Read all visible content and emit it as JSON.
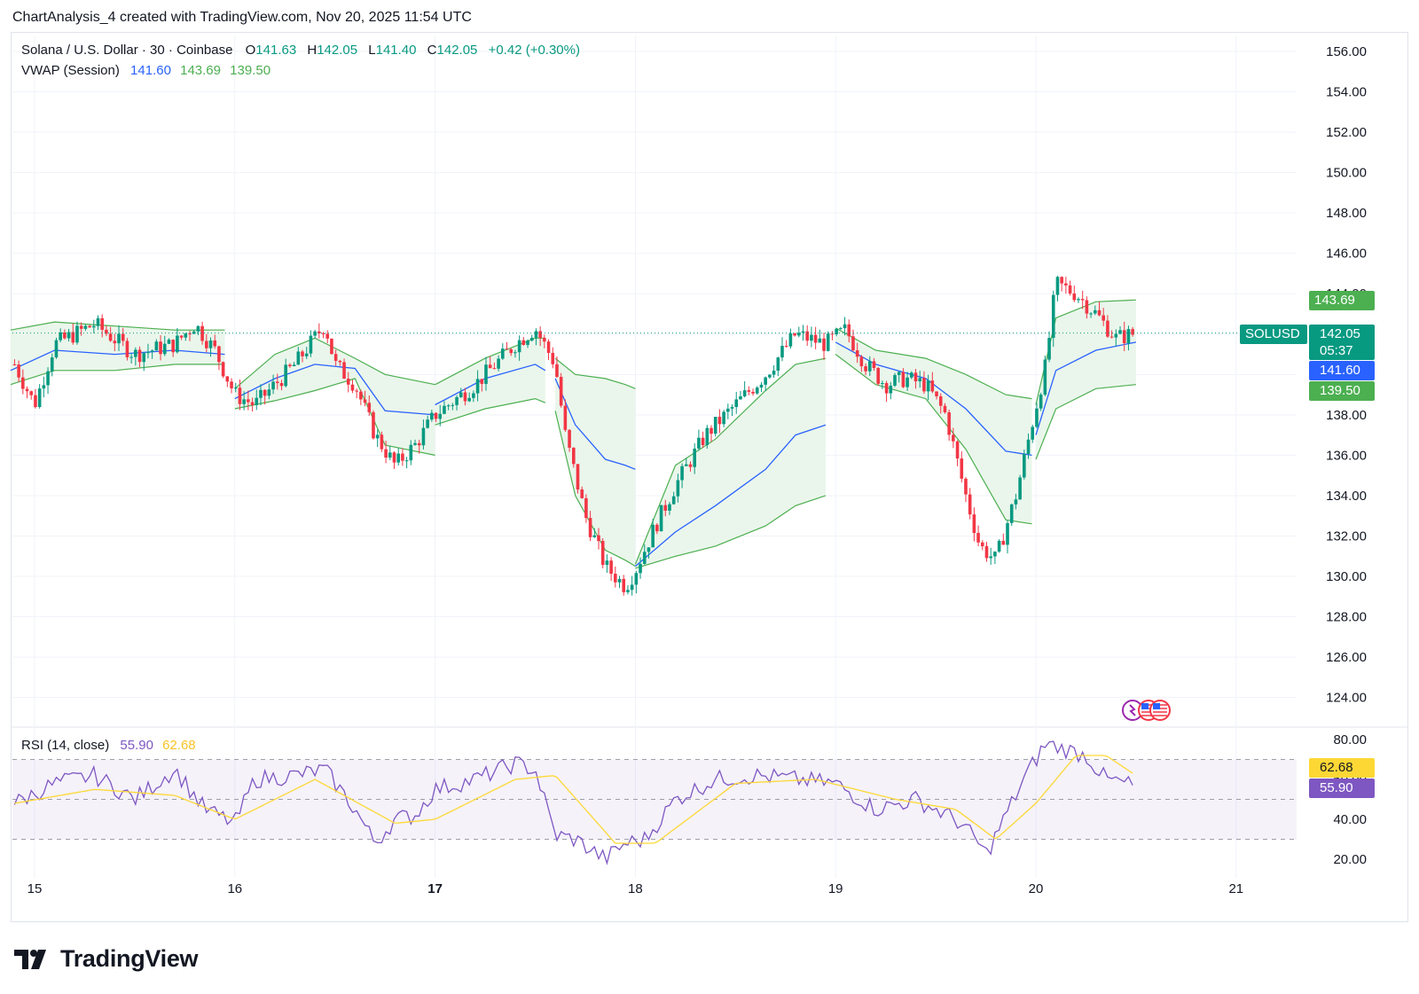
{
  "header": {
    "created_by": "ChartAnalysis_4 created with TradingView.com, Nov 20, 2025 11:54 UTC"
  },
  "legend": {
    "symbol": "Solana / U.S. Dollar · 30 · Coinbase",
    "open_label": "O",
    "open": "141.63",
    "high_label": "H",
    "high": "142.05",
    "low_label": "L",
    "low": "141.40",
    "close_label": "C",
    "close": "142.05",
    "change": "+0.42 (+0.30%)",
    "vwap_name": "VWAP (Session)",
    "vwap_value": "141.60",
    "vwap_upper": "143.69",
    "vwap_lower": "139.50",
    "rsi_name": "RSI (14, close)",
    "rsi_value": "55.90",
    "rsi_ma": "62.68"
  },
  "price_tags": {
    "vwap_upper": "143.69",
    "symbol": "SOLUSD",
    "last": "142.05",
    "countdown": "05:37",
    "vwap": "141.60",
    "vwap_lower": "139.50",
    "rsi_ma": "62.68",
    "rsi": "55.90"
  },
  "colors": {
    "up": "#089981",
    "down": "#f23645",
    "vwap": "#2962ff",
    "band": "#4caf50",
    "band_fill": "#e8f5e9",
    "rsi": "#7e57c2",
    "rsi_ma": "#fdd835",
    "grid": "#f0f3fa",
    "text": "#131722"
  },
  "footer": {
    "brand": "TradingView"
  },
  "chart_data": [
    {
      "type": "candlestick",
      "title": "Solana / U.S. Dollar · 30 · Coinbase",
      "x_ticks": [
        "15",
        "16",
        "17",
        "18",
        "19",
        "20",
        "21"
      ],
      "y_ticks": [
        "124.00",
        "126.00",
        "128.00",
        "130.00",
        "132.00",
        "134.00",
        "136.00",
        "138.00",
        "140.00",
        "142.00",
        "144.00",
        "146.00",
        "148.00",
        "150.00",
        "152.00",
        "154.00",
        "156.00"
      ],
      "ylim": [
        122.0,
        157.0
      ],
      "last_price": 142.05,
      "grid": true,
      "price_path_days": [
        14.9,
        15.0,
        15.1,
        15.3,
        15.5,
        15.7,
        15.8,
        15.9,
        16.0,
        16.1,
        16.3,
        16.45,
        16.5,
        16.6,
        16.7,
        16.8,
        16.9,
        17.0,
        17.2,
        17.4,
        17.5,
        17.6,
        17.65,
        17.75,
        17.85,
        17.95,
        18.0,
        18.1,
        18.2,
        18.35,
        18.5,
        18.65,
        18.8,
        18.95,
        19.05,
        19.15,
        19.25,
        19.35,
        19.45,
        19.55,
        19.65,
        19.72,
        19.8,
        19.9,
        19.98,
        20.05,
        20.1,
        20.2,
        20.3,
        20.4,
        20.5
      ],
      "price_path_values": [
        140.5,
        138.5,
        141.5,
        142.5,
        141.0,
        141.5,
        142.5,
        141.2,
        139.0,
        138.5,
        140.5,
        142.5,
        140.5,
        139.5,
        137.0,
        135.5,
        136.5,
        138.0,
        139.5,
        141.5,
        142.3,
        140.5,
        137.0,
        133.0,
        130.5,
        129.5,
        130.3,
        132.5,
        134.5,
        137.0,
        138.5,
        140.0,
        142.0,
        141.5,
        142.2,
        140.5,
        139.5,
        139.8,
        139.5,
        138.0,
        134.0,
        131.5,
        130.8,
        134.0,
        137.5,
        140.5,
        144.5,
        144.0,
        143.0,
        141.8,
        142.05
      ],
      "vwap": {
        "name": "VWAP (Session)",
        "current": 141.6,
        "upper": 143.69,
        "lower": 139.5
      },
      "vwap_segments": [
        {
          "days": [
            14.88,
            15.1,
            15.4,
            15.7,
            15.95
          ],
          "mid": [
            140.2,
            141.2,
            141.0,
            141.2,
            141.0
          ],
          "upper": [
            142.2,
            142.6,
            142.4,
            142.2,
            142.2
          ],
          "lower": [
            139.5,
            140.2,
            140.2,
            140.5,
            140.5
          ]
        },
        {
          "days": [
            16.0,
            16.2,
            16.4,
            16.6,
            16.75,
            17.0
          ],
          "mid": [
            138.8,
            139.8,
            140.5,
            140.3,
            138.2,
            138.0
          ],
          "upper": [
            139.3,
            141.0,
            141.8,
            140.8,
            140.0,
            139.5
          ],
          "lower": [
            138.3,
            138.7,
            139.2,
            139.8,
            136.5,
            136.0
          ]
        },
        {
          "days": [
            17.0,
            17.25,
            17.5,
            17.55
          ],
          "mid": [
            138.5,
            139.8,
            140.5,
            140.2
          ],
          "upper": [
            139.5,
            140.8,
            141.8,
            141.8
          ],
          "lower": [
            137.5,
            138.3,
            138.8,
            138.6
          ]
        },
        {
          "days": [
            17.6,
            17.7,
            17.85,
            17.95,
            18.0
          ],
          "mid": [
            139.8,
            137.5,
            135.8,
            135.5,
            135.3
          ],
          "upper": [
            140.8,
            140.0,
            139.8,
            139.5,
            139.3
          ],
          "lower": [
            138.2,
            134.0,
            131.3,
            130.8,
            130.5
          ]
        },
        {
          "days": [
            18.0,
            18.2,
            18.4,
            18.65,
            18.8,
            18.95
          ],
          "mid": [
            130.5,
            132.2,
            133.5,
            135.3,
            137.0,
            137.5
          ],
          "upper": [
            130.6,
            135.5,
            136.8,
            139.2,
            140.5,
            140.8
          ],
          "lower": [
            130.4,
            131.0,
            131.5,
            132.5,
            133.5,
            134.0
          ]
        },
        {
          "days": [
            19.0,
            19.2,
            19.45,
            19.65,
            19.85,
            19.98
          ],
          "mid": [
            141.6,
            140.5,
            139.8,
            138.3,
            136.2,
            136.0
          ],
          "upper": [
            142.3,
            141.2,
            140.8,
            140.0,
            139.0,
            138.8
          ],
          "lower": [
            141.0,
            139.5,
            138.8,
            136.3,
            132.8,
            132.6
          ]
        },
        {
          "days": [
            20.0,
            20.1,
            20.3,
            20.5
          ],
          "mid": [
            137.0,
            140.2,
            141.2,
            141.6
          ],
          "upper": [
            138.5,
            142.8,
            143.6,
            143.69
          ],
          "lower": [
            135.8,
            138.3,
            139.3,
            139.5
          ]
        }
      ]
    },
    {
      "type": "line",
      "title": "RSI (14, close)",
      "ylim": [
        15,
        85
      ],
      "y_ticks": [
        "20.00",
        "40.00",
        "60.00",
        "80.00"
      ],
      "bands": [
        30,
        50,
        70
      ],
      "series": [
        {
          "name": "RSI",
          "current": 55.9,
          "x": [
            14.9,
            15.1,
            15.3,
            15.5,
            15.7,
            15.85,
            16.0,
            16.1,
            16.3,
            16.45,
            16.6,
            16.7,
            16.8,
            16.9,
            17.0,
            17.2,
            17.4,
            17.5,
            17.6,
            17.7,
            17.85,
            17.95,
            18.05,
            18.2,
            18.4,
            18.6,
            18.8,
            19.0,
            19.2,
            19.4,
            19.6,
            19.7,
            19.75,
            19.85,
            19.95,
            20.05,
            20.15,
            20.25,
            20.35,
            20.45,
            20.5
          ],
          "y": [
            48,
            58,
            62,
            50,
            65,
            45,
            38,
            60,
            62,
            65,
            45,
            28,
            40,
            42,
            55,
            60,
            68,
            65,
            32,
            30,
            20,
            28,
            30,
            50,
            60,
            62,
            60,
            58,
            45,
            50,
            40,
            30,
            22,
            42,
            62,
            78,
            75,
            72,
            60,
            58,
            56
          ]
        },
        {
          "name": "RSI MA",
          "current": 62.68,
          "x": [
            14.9,
            15.3,
            15.7,
            16.0,
            16.4,
            16.8,
            17.0,
            17.4,
            17.6,
            17.9,
            18.1,
            18.5,
            18.9,
            19.3,
            19.6,
            19.8,
            20.0,
            20.2,
            20.35,
            20.5
          ],
          "y": [
            48,
            55,
            52,
            40,
            60,
            38,
            40,
            60,
            62,
            28,
            28,
            58,
            60,
            50,
            45,
            30,
            48,
            72,
            72,
            62
          ]
        }
      ]
    }
  ]
}
